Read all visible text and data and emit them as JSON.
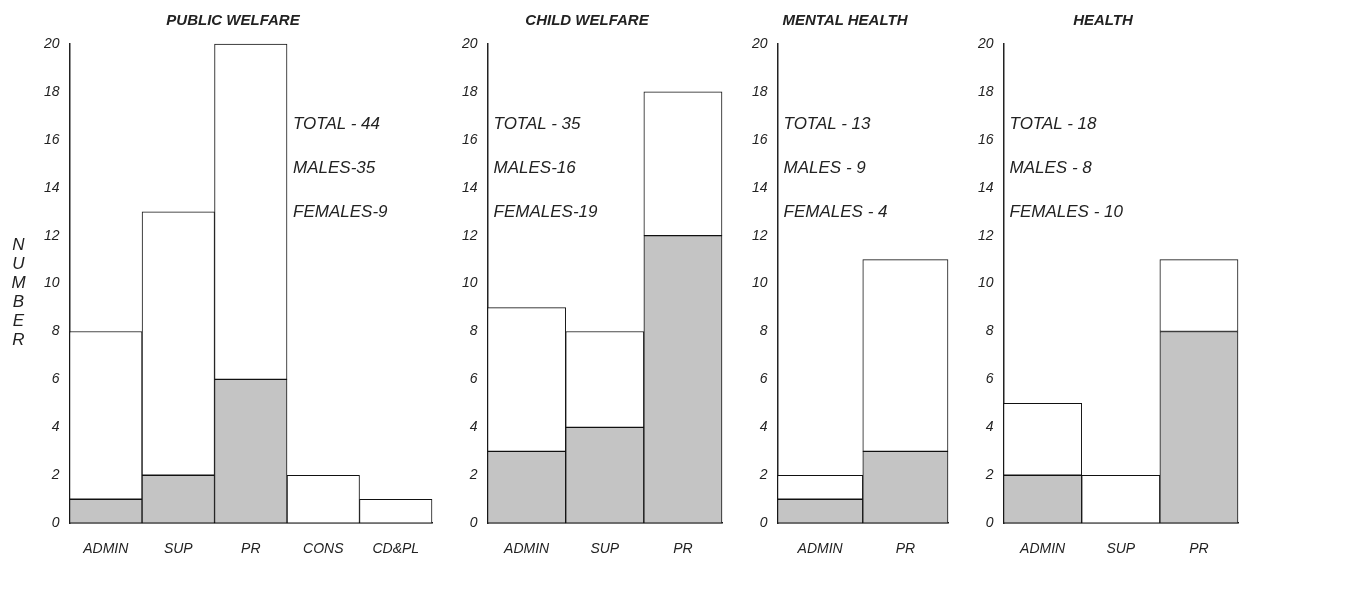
{
  "chart_data": [
    {
      "type": "bar",
      "title": "PUBLIC WELFARE",
      "ylabel": "NUMBER",
      "categories": [
        "ADMIN",
        "SUP",
        "PR",
        "CONS",
        "CD&PL"
      ],
      "stacked": true,
      "series": [
        {
          "color": "#c4c4c4",
          "values": [
            1,
            2,
            6,
            0,
            0
          ]
        },
        {
          "color": "#ffffff",
          "values": [
            7,
            11,
            14,
            2,
            1
          ]
        }
      ],
      "ylim": [
        0,
        20
      ],
      "yticks": [
        0,
        2,
        4,
        6,
        8,
        10,
        12,
        14,
        16,
        18,
        20
      ],
      "annotations": [
        "TOTAL - 44",
        "MALES-35",
        "FEMALES-9"
      ]
    },
    {
      "type": "bar",
      "title": "CHILD WELFARE",
      "categories": [
        "ADMIN",
        "SUP",
        "PR"
      ],
      "stacked": true,
      "series": [
        {
          "color": "#c4c4c4",
          "values": [
            3,
            4,
            12
          ]
        },
        {
          "color": "#ffffff",
          "values": [
            6,
            4,
            6
          ]
        }
      ],
      "ylim": [
        0,
        20
      ],
      "yticks": [
        0,
        2,
        4,
        6,
        8,
        10,
        12,
        14,
        16,
        18,
        20
      ],
      "annotations": [
        "TOTAL - 35",
        "MALES-16",
        "FEMALES-19"
      ]
    },
    {
      "type": "bar",
      "title": "MENTAL HEALTH",
      "categories": [
        "ADMIN",
        "PR"
      ],
      "stacked": true,
      "series": [
        {
          "color": "#c4c4c4",
          "values": [
            1,
            3
          ]
        },
        {
          "color": "#ffffff",
          "values": [
            1,
            8
          ]
        }
      ],
      "ylim": [
        0,
        20
      ],
      "yticks": [
        0,
        2,
        4,
        6,
        8,
        10,
        12,
        14,
        16,
        18,
        20
      ],
      "annotations": [
        "TOTAL - 13",
        "MALES - 9",
        "FEMALES - 4"
      ]
    },
    {
      "type": "bar",
      "title": "HEALTH",
      "categories": [
        "ADMIN",
        "SUP",
        "PR"
      ],
      "stacked": true,
      "series": [
        {
          "color": "#c4c4c4",
          "values": [
            2,
            0,
            8
          ]
        },
        {
          "color": "#ffffff",
          "values": [
            3,
            2,
            3
          ]
        }
      ],
      "ylim": [
        0,
        20
      ],
      "yticks": [
        0,
        2,
        4,
        6,
        8,
        10,
        12,
        14,
        16,
        18,
        20
      ],
      "annotations": [
        "TOTAL - 18",
        "MALES - 8",
        "FEMALES - 10"
      ]
    }
  ]
}
